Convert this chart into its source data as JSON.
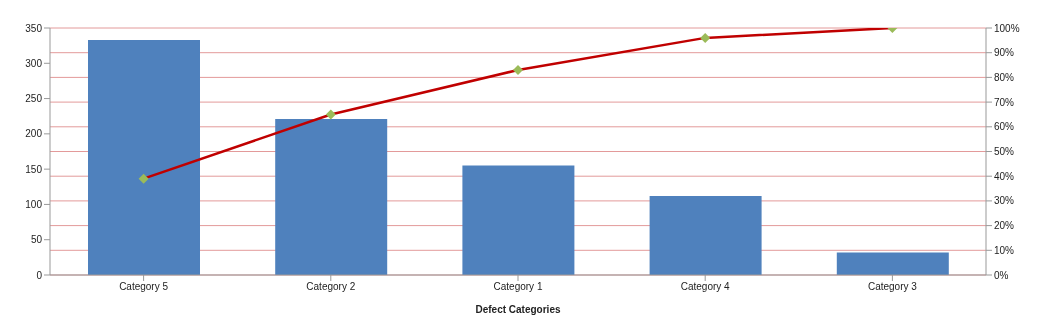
{
  "chart_data": {
    "type": "bar",
    "xlabel": "Defect Categories",
    "categories": [
      "Category 5",
      "Category 2",
      "Category 1",
      "Category 4",
      "Category 3"
    ],
    "series": [
      {
        "color": "#4f81bd",
        "values": [
          333,
          221,
          155,
          112,
          32
        ]
      },
      {
        "type": "line",
        "axis": "y2",
        "color": "#c00000",
        "marker": "diamond",
        "values": [
          39,
          65,
          83,
          96,
          100
        ]
      }
    ],
    "ylim": [
      0,
      350
    ],
    "yticks": [
      0,
      50,
      100,
      150,
      200,
      250,
      300,
      350
    ],
    "y2lim": [
      0,
      100
    ],
    "y2ticks": [
      {
        "value": 0,
        "label": "0%"
      },
      {
        "value": 10,
        "label": "10%"
      },
      {
        "value": 20,
        "label": "20%"
      },
      {
        "value": 30,
        "label": "30%"
      },
      {
        "value": 40,
        "label": "40%"
      },
      {
        "value": 50,
        "label": "50%"
      },
      {
        "value": 60,
        "label": "60%"
      },
      {
        "value": 70,
        "label": "70%"
      },
      {
        "value": 80,
        "label": "80%"
      },
      {
        "value": 90,
        "label": "90%"
      },
      {
        "value": 100,
        "label": "100%"
      }
    ],
    "grid": "y"
  }
}
